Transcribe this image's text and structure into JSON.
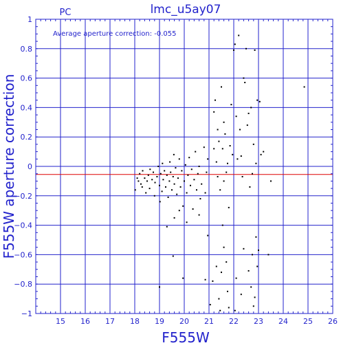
{
  "chart_data": {
    "type": "scatter",
    "title": "lmc_u5ay07",
    "corner_label": "PC",
    "annotation": "Average aperture correction: -0.055",
    "xlabel": "F555W",
    "ylabel": "F555W aperture correction",
    "xlim": [
      14,
      26
    ],
    "ylim": [
      -1,
      1
    ],
    "x_ticks": [
      15,
      16,
      17,
      18,
      19,
      20,
      21,
      22,
      23,
      24,
      25,
      26
    ],
    "y_ticks": [
      1,
      0.8,
      0.6,
      0.4,
      0.2,
      0,
      -0.2,
      -0.4,
      -0.6,
      -0.8,
      -1
    ],
    "y_tick_labels": [
      "1",
      "0.8",
      "0.6",
      "0.4",
      "0.2",
      "0",
      "−0.2",
      "−0.4",
      "−0.6",
      "−0.8",
      "−1"
    ],
    "grid": true,
    "colors": {
      "axis": "#2222cc",
      "mean_line": "#dd0000",
      "points": "#000000"
    },
    "horizontal_lines": [
      {
        "y": 0,
        "color": "#2222cc"
      },
      {
        "y": -0.055,
        "color": "#dd0000"
      }
    ],
    "points": [
      [
        18.02,
        -0.16
      ],
      [
        18.1,
        -0.08
      ],
      [
        18.15,
        -0.1
      ],
      [
        18.2,
        -0.05
      ],
      [
        18.25,
        -0.12
      ],
      [
        18.3,
        -0.14
      ],
      [
        18.32,
        -0.03
      ],
      [
        18.4,
        -0.08
      ],
      [
        18.45,
        -0.18
      ],
      [
        18.5,
        -0.1
      ],
      [
        18.55,
        -0.06
      ],
      [
        18.6,
        -0.15
      ],
      [
        18.62,
        -0.02
      ],
      [
        18.7,
        -0.09
      ],
      [
        18.75,
        -0.04
      ],
      [
        18.8,
        -0.2
      ],
      [
        18.82,
        -0.11
      ],
      [
        18.9,
        -0.07
      ],
      [
        18.95,
        0.0
      ],
      [
        19.0,
        -0.13
      ],
      [
        19.02,
        -0.24
      ],
      [
        19.05,
        -0.05
      ],
      [
        19.1,
        -0.17
      ],
      [
        19.12,
        0.02
      ],
      [
        19.15,
        -0.09
      ],
      [
        19.2,
        -0.03
      ],
      [
        19.25,
        -0.14
      ],
      [
        19.3,
        -0.06
      ],
      [
        19.35,
        -0.21
      ],
      [
        19.4,
        -0.1
      ],
      [
        19.42,
        0.03
      ],
      [
        19.45,
        -0.04
      ],
      [
        19.5,
        -0.16
      ],
      [
        19.55,
        -0.07
      ],
      [
        19.58,
        0.08
      ],
      [
        19.6,
        -0.12
      ],
      [
        19.65,
        -0.01
      ],
      [
        19.7,
        -0.19
      ],
      [
        19.75,
        -0.08
      ],
      [
        19.8,
        0.05
      ],
      [
        19.85,
        -0.14
      ],
      [
        19.9,
        -0.03
      ],
      [
        19.95,
        -0.27
      ],
      [
        20.0,
        -0.1
      ],
      [
        20.05,
        0.01
      ],
      [
        20.1,
        -0.18
      ],
      [
        20.15,
        -0.06
      ],
      [
        20.2,
        0.06
      ],
      [
        20.25,
        -0.13
      ],
      [
        20.3,
        -0.02
      ],
      [
        20.35,
        -0.29
      ],
      [
        20.4,
        -0.09
      ],
      [
        20.45,
        0.1
      ],
      [
        20.5,
        -0.16
      ],
      [
        20.55,
        -0.05
      ],
      [
        20.6,
        0.0
      ],
      [
        20.65,
        -0.22
      ],
      [
        20.7,
        -0.12
      ],
      [
        20.8,
        0.13
      ],
      [
        20.85,
        -0.18
      ],
      [
        20.9,
        -0.04
      ],
      [
        20.95,
        0.05
      ],
      [
        19.6,
        -0.35
      ],
      [
        19.3,
        -0.41
      ],
      [
        20.1,
        -0.38
      ],
      [
        19.8,
        -0.3
      ],
      [
        20.6,
        -0.33
      ],
      [
        19.0,
        -0.82
      ],
      [
        19.95,
        -0.76
      ],
      [
        19.55,
        -0.61
      ],
      [
        20.85,
        -0.77
      ],
      [
        20.95,
        -0.47
      ],
      [
        21.05,
        -0.94
      ],
      [
        21.15,
        -0.78
      ],
      [
        21.2,
        0.37
      ],
      [
        21.25,
        0.45
      ],
      [
        21.3,
        0.03
      ],
      [
        21.35,
        -0.07
      ],
      [
        21.4,
        0.17
      ],
      [
        21.45,
        -0.16
      ],
      [
        21.5,
        0.54
      ],
      [
        21.55,
        0.12
      ],
      [
        21.6,
        -0.1
      ],
      [
        21.65,
        0.22
      ],
      [
        21.7,
        -0.04
      ],
      [
        21.75,
        0.02
      ],
      [
        21.8,
        -0.28
      ],
      [
        21.85,
        0.14
      ],
      [
        21.9,
        0.42
      ],
      [
        21.95,
        0.08
      ],
      [
        21.3,
        -0.68
      ],
      [
        21.4,
        -0.9
      ],
      [
        21.45,
        -0.98
      ],
      [
        21.5,
        -0.72
      ],
      [
        21.55,
        -0.4
      ],
      [
        21.6,
        -0.55
      ],
      [
        21.7,
        -0.65
      ],
      [
        21.75,
        -0.85
      ],
      [
        21.8,
        -0.96
      ],
      [
        21.35,
        0.25
      ],
      [
        21.2,
        0.12
      ],
      [
        21.6,
        0.3
      ],
      [
        22.0,
        0.79
      ],
      [
        22.05,
        0.83
      ],
      [
        22.1,
        0.34
      ],
      [
        22.15,
        0.05
      ],
      [
        22.2,
        0.89
      ],
      [
        22.25,
        0.25
      ],
      [
        22.3,
        0.07
      ],
      [
        22.35,
        -0.07
      ],
      [
        22.4,
        0.6
      ],
      [
        22.45,
        0.57
      ],
      [
        22.5,
        0.8
      ],
      [
        22.55,
        0.28
      ],
      [
        22.6,
        0.36
      ],
      [
        22.65,
        -0.14
      ],
      [
        22.7,
        0.4
      ],
      [
        22.75,
        -0.05
      ],
      [
        22.8,
        0.15
      ],
      [
        22.85,
        0.79
      ],
      [
        22.9,
        0.02
      ],
      [
        22.95,
        0.45
      ],
      [
        23.05,
        0.44
      ],
      [
        23.1,
        0.08
      ],
      [
        23.2,
        0.1
      ],
      [
        22.1,
        -0.76
      ],
      [
        22.3,
        -0.87
      ],
      [
        22.4,
        -0.56
      ],
      [
        22.6,
        -0.71
      ],
      [
        22.7,
        -0.82
      ],
      [
        22.75,
        -0.6
      ],
      [
        22.85,
        -0.89
      ],
      [
        22.9,
        -0.48
      ],
      [
        22.95,
        -0.68
      ],
      [
        23.0,
        -0.57
      ],
      [
        23.5,
        -0.1
      ],
      [
        23.4,
        -0.6
      ],
      [
        24.85,
        0.54
      ],
      [
        22.05,
        -0.98
      ],
      [
        22.8,
        -0.95
      ]
    ]
  }
}
